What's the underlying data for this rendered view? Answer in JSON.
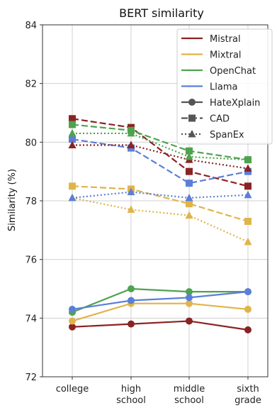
{
  "chart_data": {
    "type": "line",
    "title": "BERT similarity",
    "xlabel": "",
    "ylabel": "Similarity (%)",
    "ylim": [
      72,
      84
    ],
    "yticks": [
      72,
      74,
      76,
      78,
      80,
      82,
      84
    ],
    "categories": [
      [
        "college"
      ],
      [
        "high",
        "school"
      ],
      [
        "middle",
        "school"
      ],
      [
        "sixth",
        "grade"
      ]
    ],
    "grid": true,
    "legend_position": "top-right",
    "models": [
      {
        "name": "Mistral",
        "color": "#8b2323"
      },
      {
        "name": "Mixtral",
        "color": "#e0b44a"
      },
      {
        "name": "OpenChat",
        "color": "#4fa24f"
      },
      {
        "name": "Llama",
        "color": "#5b7fd8"
      }
    ],
    "datasets": [
      {
        "name": "HateXplain",
        "linestyle": "solid",
        "marker": "circle"
      },
      {
        "name": "CAD",
        "linestyle": "dashed",
        "marker": "square"
      },
      {
        "name": "SpanEx",
        "linestyle": "dotted",
        "marker": "triangle"
      }
    ],
    "series": [
      {
        "model": "Mistral",
        "dataset": "HateXplain",
        "values": [
          73.7,
          73.8,
          73.9,
          73.6
        ]
      },
      {
        "model": "Mixtral",
        "dataset": "HateXplain",
        "values": [
          73.9,
          74.5,
          74.5,
          74.3
        ]
      },
      {
        "model": "OpenChat",
        "dataset": "HateXplain",
        "values": [
          74.2,
          75.0,
          74.9,
          74.9
        ]
      },
      {
        "model": "Llama",
        "dataset": "HateXplain",
        "values": [
          74.3,
          74.6,
          74.7,
          74.9
        ]
      },
      {
        "model": "Mistral",
        "dataset": "CAD",
        "values": [
          80.8,
          80.5,
          79.0,
          78.5
        ]
      },
      {
        "model": "Mixtral",
        "dataset": "CAD",
        "values": [
          78.5,
          78.4,
          77.9,
          77.3
        ]
      },
      {
        "model": "OpenChat",
        "dataset": "CAD",
        "values": [
          80.6,
          80.4,
          79.7,
          79.4
        ]
      },
      {
        "model": "Llama",
        "dataset": "CAD",
        "values": [
          80.1,
          79.8,
          78.6,
          79.0
        ]
      },
      {
        "model": "Mistral",
        "dataset": "SpanEx",
        "values": [
          79.9,
          79.9,
          79.4,
          79.1
        ]
      },
      {
        "model": "Mixtral",
        "dataset": "SpanEx",
        "values": [
          78.1,
          77.7,
          77.5,
          76.6
        ]
      },
      {
        "model": "OpenChat",
        "dataset": "SpanEx",
        "values": [
          80.3,
          80.3,
          79.5,
          79.4
        ]
      },
      {
        "model": "Llama",
        "dataset": "SpanEx",
        "values": [
          78.1,
          78.3,
          78.1,
          78.2
        ]
      }
    ]
  }
}
